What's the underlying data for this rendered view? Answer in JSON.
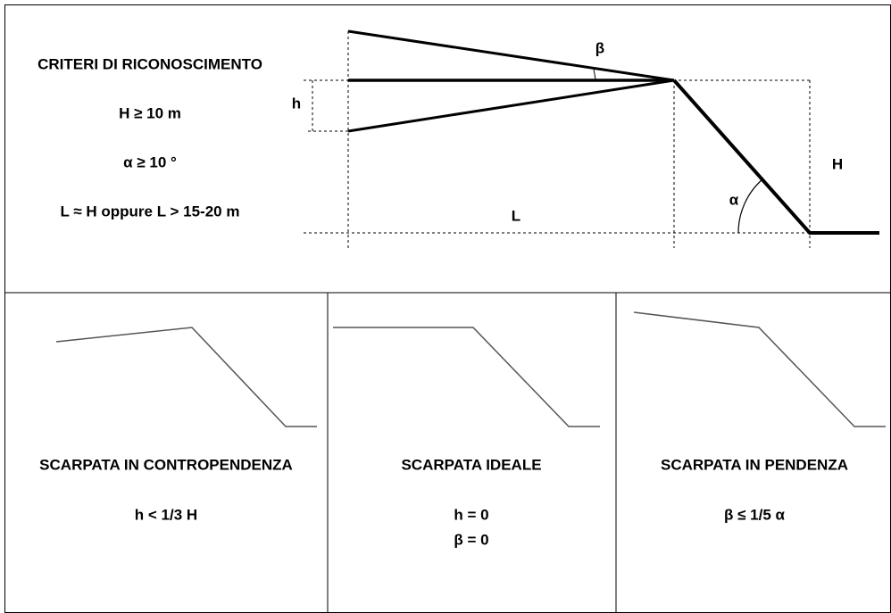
{
  "criteria": {
    "title": "CRITERI DI RICONOSCIMENTO",
    "items": [
      "H ≥ 10 m",
      "α ≥ 10 °",
      "L ≈ H oppure L > 15-20 m"
    ]
  },
  "diagram_labels": {
    "beta": "β",
    "h": "h",
    "H": "H",
    "alpha": "α",
    "L": "L"
  },
  "cases": [
    {
      "title": "SCARPATA IN CONTROPENDENZA",
      "conditions": [
        "h < 1/3 H"
      ]
    },
    {
      "title": "SCARPATA IDEALE",
      "conditions": [
        "h = 0",
        "β = 0"
      ]
    },
    {
      "title": "SCARPATA IN PENDENZA",
      "conditions": [
        "β ≤ 1/5 α"
      ]
    }
  ]
}
